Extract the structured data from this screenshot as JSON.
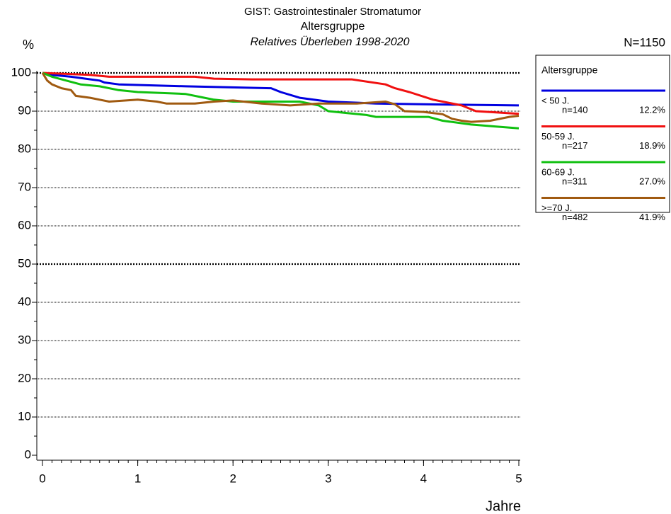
{
  "chart_data": {
    "type": "line",
    "title": "GIST: Gastrointestinaler Stromatumor",
    "subtitle": "Altersgruppe",
    "subtitle2": "Relatives Überleben 1998-2020",
    "ylabel": "%",
    "xlabel": "Jahre",
    "total_label": "N=1150",
    "legend_title": "Altersgruppe",
    "xlim": [
      0,
      5
    ],
    "xticks": [
      0,
      1,
      2,
      3,
      4,
      5
    ],
    "ylim": [
      0,
      100
    ],
    "yticks": [
      0,
      10,
      20,
      30,
      40,
      50,
      60,
      70,
      80,
      90,
      100
    ],
    "grid": true,
    "emphasized_gridlines": [
      50,
      100
    ],
    "series": [
      {
        "name": "< 50 J.",
        "n_label": "n=140",
        "share_label": "12.2%",
        "color": "#0000e0",
        "x": [
          0,
          0.1,
          0.3,
          0.6,
          0.65,
          0.8,
          1.5,
          2.4,
          2.5,
          2.7,
          3,
          3.5,
          4,
          5
        ],
        "values": [
          100,
          99.5,
          99,
          98,
          97.5,
          97,
          96.5,
          96,
          95,
          93.5,
          92.5,
          92,
          91.8,
          91.5
        ]
      },
      {
        "name": "50-59 J.",
        "n_label": "n=217",
        "share_label": "18.9%",
        "color": "#f01010",
        "x": [
          0,
          0.5,
          0.7,
          1.6,
          1.8,
          2.2,
          3.25,
          3.6,
          3.7,
          3.85,
          4.1,
          4.2,
          4.4,
          4.55,
          5
        ],
        "values": [
          100,
          99.5,
          99,
          99,
          98.5,
          98.3,
          98.3,
          97,
          96,
          95,
          93,
          92.5,
          91.5,
          90,
          89.3
        ]
      },
      {
        "name": "60-69 J.",
        "n_label": "n=311",
        "share_label": "27.0%",
        "color": "#10c010",
        "x": [
          0,
          0.1,
          0.25,
          0.4,
          0.6,
          0.8,
          1,
          1.5,
          1.7,
          1.8,
          2,
          2.7,
          2.9,
          3,
          3.2,
          3.4,
          3.5,
          4.05,
          4.2,
          4.5,
          4.75,
          5
        ],
        "values": [
          100,
          99,
          98,
          97,
          96.5,
          95.5,
          95,
          94.5,
          93.5,
          93,
          92.5,
          92.5,
          91.5,
          90,
          89.5,
          89,
          88.5,
          88.5,
          87.5,
          86.5,
          86,
          85.5
        ]
      },
      {
        "name": ">=70 J.",
        "n_label": "n=482",
        "share_label": "41.9%",
        "color": "#a05a10",
        "x": [
          0,
          0.05,
          0.1,
          0.2,
          0.3,
          0.35,
          0.5,
          0.6,
          0.7,
          1,
          1.2,
          1.3,
          1.6,
          1.8,
          2,
          2.3,
          2.6,
          2.9,
          3.3,
          3.6,
          3.7,
          3.8,
          4,
          4.2,
          4.3,
          4.4,
          4.5,
          4.7,
          4.9,
          5
        ],
        "values": [
          100,
          98,
          97,
          96,
          95.5,
          94,
          93.5,
          93,
          92.5,
          93,
          92.5,
          92,
          92,
          92.5,
          92.8,
          92,
          91.5,
          92,
          92,
          92.5,
          91.8,
          90,
          89.8,
          89.2,
          88,
          87.5,
          87.2,
          87.5,
          88.5,
          88.8
        ]
      }
    ]
  }
}
